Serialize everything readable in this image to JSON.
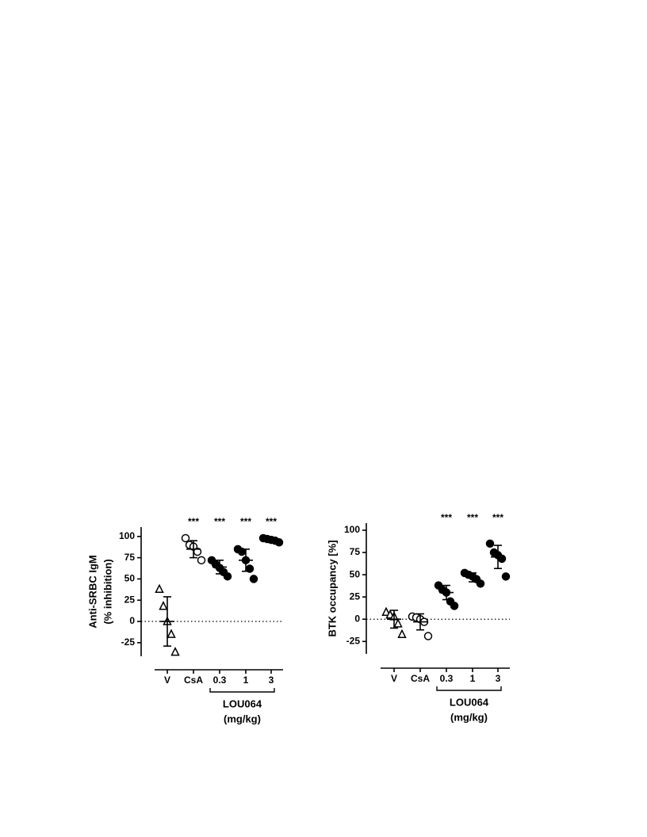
{
  "chart_data": [
    {
      "type": "dot",
      "y_label": [
        "Anti-SRBC IgM",
        "(% inhibition)"
      ],
      "categories": [
        "V",
        "CsA",
        "0.3",
        "1",
        "3"
      ],
      "markers": [
        "triangle-open",
        "circle-open",
        "circle",
        "circle",
        "circle"
      ],
      "points": [
        [
          38,
          18,
          0,
          -15,
          -36
        ],
        [
          98,
          90,
          88,
          82,
          72
        ],
        [
          72,
          67,
          63,
          58,
          53
        ],
        [
          85,
          82,
          72,
          62,
          50
        ],
        [
          98,
          97,
          96,
          95,
          93
        ]
      ],
      "means": [
        0,
        85,
        64,
        72,
        95
      ],
      "sd": [
        29,
        10,
        8,
        13,
        2
      ],
      "significance": [
        null,
        "***",
        "***",
        "***",
        "***"
      ],
      "group": {
        "label": [
          "LOU064",
          "(mg/kg)"
        ],
        "from": 2,
        "to": 4
      },
      "ylim": [
        -41,
        111
      ],
      "yticks": [
        100,
        75,
        50,
        25,
        0,
        -25
      ],
      "zero_line": true
    },
    {
      "type": "dot",
      "y_label": [
        "BTK occupancy [%]"
      ],
      "categories": [
        "V",
        "CsA",
        "0.3",
        "1",
        "3"
      ],
      "markers": [
        "triangle-open",
        "circle-open",
        "circle",
        "circle",
        "circle"
      ],
      "points": [
        [
          8,
          5,
          3,
          -5,
          -17
        ],
        [
          3,
          2,
          0,
          -3,
          -19
        ],
        [
          38,
          33,
          30,
          20,
          15
        ],
        [
          52,
          50,
          48,
          45,
          40
        ],
        [
          85,
          75,
          72,
          68,
          48
        ]
      ],
      "means": [
        0,
        -3,
        30,
        47,
        70
      ],
      "sd": [
        10,
        9,
        8,
        5,
        13
      ],
      "significance": [
        null,
        null,
        "***",
        "***",
        "***"
      ],
      "group": {
        "label": [
          "LOU064",
          "(mg/kg)"
        ],
        "from": 2,
        "to": 4
      },
      "ylim": [
        -39,
        108
      ],
      "yticks": [
        100,
        75,
        50,
        25,
        0,
        -25
      ],
      "zero_line": true
    }
  ]
}
